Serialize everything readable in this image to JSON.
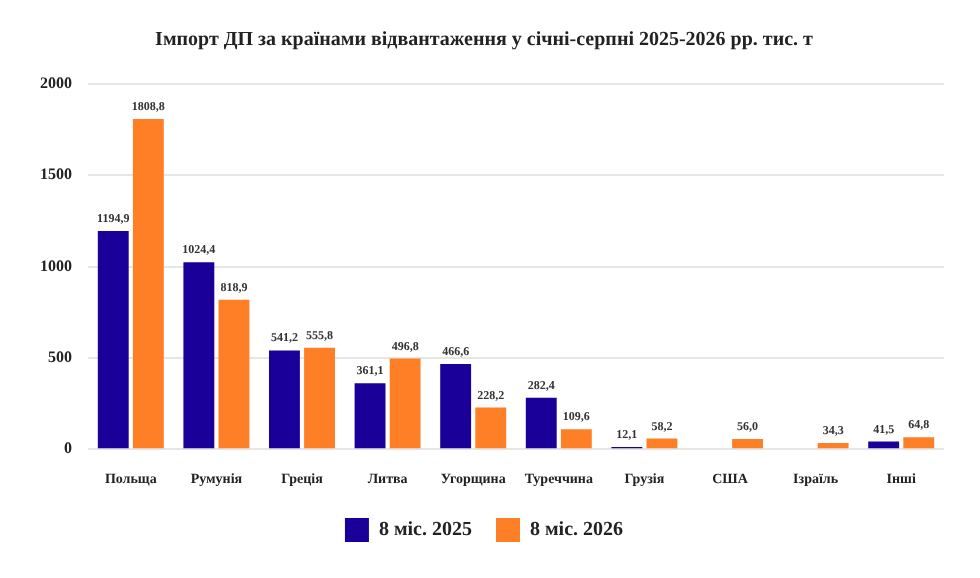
{
  "chart_data": {
    "type": "bar",
    "title": "Імпорт ДП за країнами відвантаження у січні-серпні 2025-2026 рр. тис. т",
    "categories": [
      "Польща",
      "Румунія",
      "Греція",
      "Литва",
      "Угорщина",
      "Туреччина",
      "Грузія",
      "США",
      "Ізраїль",
      "Інші"
    ],
    "series": [
      {
        "name": "8 міс. 2025",
        "color": "#1a0099",
        "values": [
          1194.9,
          1024.4,
          541.2,
          361.1,
          466.6,
          282.4,
          12.1,
          null,
          null,
          41.5
        ],
        "value_labels": [
          "1194,9",
          "1024,4",
          "541,2",
          "361,1",
          "466,6",
          "282,4",
          "12,1",
          null,
          null,
          "41,5"
        ]
      },
      {
        "name": "8 міс. 2026",
        "color": "#ff7f27",
        "values": [
          1808.8,
          818.9,
          555.8,
          496.8,
          228.2,
          109.6,
          58.2,
          56.0,
          34.3,
          64.8
        ],
        "value_labels": [
          "1808,8",
          "818,9",
          "555,8",
          "496,8",
          "228,2",
          "109,6",
          "58,2",
          "56,0",
          "34,3",
          "64,8"
        ]
      }
    ],
    "ylim": [
      0,
      2000
    ],
    "yticks": [
      0,
      500,
      1000,
      1500,
      2000
    ],
    "grid": "y",
    "legend": "bottom"
  }
}
